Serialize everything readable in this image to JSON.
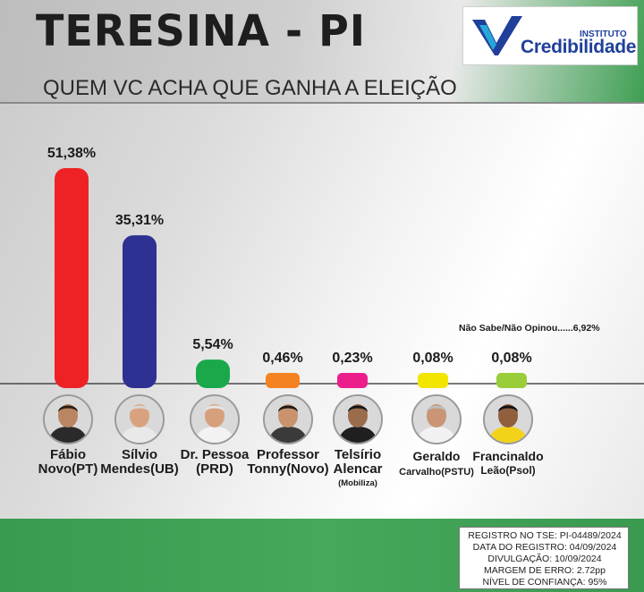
{
  "header": {
    "title": "TERESINA - PI",
    "subtitle": "QUEM VC ACHA QUE GANHA A ELEIÇÃO",
    "logo_small": "INSTITUTO",
    "logo_big": "Credibilidade"
  },
  "chart_data": {
    "type": "bar",
    "title": "QUEM VC ACHA QUE GANHA A ELEIÇÃO",
    "xlabel": "",
    "ylabel": "",
    "unit": "%",
    "ylim": [
      0,
      55
    ],
    "grid": false,
    "categories": [
      "Fábio Novo(PT)",
      "Sílvio Mendes(UB)",
      "Dr. Pessoa (PRD)",
      "Professor Tonny(Novo)",
      "Telsírio Alencar (Mobiliza)",
      "Geraldo Carvalho(PSTU)",
      "Francinaldo Leão(Psol)"
    ],
    "values": [
      51.38,
      35.31,
      5.54,
      0.46,
      0.23,
      0.08,
      0.08
    ],
    "value_labels": [
      "51,38%",
      "35,31%",
      "5,54%",
      "0,46%",
      "0,23%",
      "0,08%",
      "0,08%"
    ],
    "colors": [
      "#ee2225",
      "#2e3192",
      "#1aa84b",
      "#f58220",
      "#ec1e8c",
      "#f2e600",
      "#9acd3a"
    ],
    "annotation": "Não Sabe/Não Opinou......6,92%"
  },
  "candidates": [
    {
      "line1": "Fábio",
      "line2": "Novo(PT)",
      "line3": "",
      "icon": "fabio-novo-photo",
      "skin": "#b98562",
      "shirt": "#2a2a2a",
      "hair": "#2b1d12"
    },
    {
      "line1": "Sílvio",
      "line2": "Mendes(UB)",
      "line3": "",
      "icon": "silvio-mendes-photo",
      "skin": "#d9a27e",
      "shirt": "#e9e9e9",
      "hair": "#d8d8d8"
    },
    {
      "line1": "Dr. Pessoa",
      "line2": "(PRD)",
      "line3": "",
      "icon": "dr-pessoa-photo",
      "skin": "#d6a07c",
      "shirt": "#f2f2f2",
      "hair": "#e6e6e6"
    },
    {
      "line1": "Professor",
      "line2": "Tonny(Novo)",
      "line3": "",
      "icon": "professor-tonny-photo",
      "skin": "#c9936f",
      "shirt": "#3a3a3a",
      "hair": "#1a1a1a"
    },
    {
      "line1": "Telsírio",
      "line2": "Alencar",
      "line3": "(Mobiliza)",
      "icon": "telsirio-alencar-photo",
      "skin": "#9a6c4c",
      "shirt": "#1f1f1f",
      "hair": "#141414"
    },
    {
      "line1": "Geraldo",
      "line2": "Carvalho(PSTU)",
      "line3": "",
      "icon": "geraldo-carvalho-photo",
      "skin": "#c99574",
      "shirt": "#f1f1f1",
      "hair": "#bdbdbd"
    },
    {
      "line1": "Francinaldo",
      "line2": "Leão(Psol)",
      "line3": "",
      "icon": "francinaldo-leao-photo",
      "skin": "#8f5f3e",
      "shirt": "#f3d21a",
      "hair": "#121212"
    }
  ],
  "registro": {
    "tse": "REGISTRO NO TSE: PI-04489/2024",
    "data": "DATA DO REGISTRO: 04/09/2024",
    "divulgacao": "DIVULGAÇÃO: 10/09/2024",
    "margem": "MARGEM DE ERRO: 2.72pp",
    "confianca": "NÍVEL DE CONFIANÇA: 95%"
  }
}
